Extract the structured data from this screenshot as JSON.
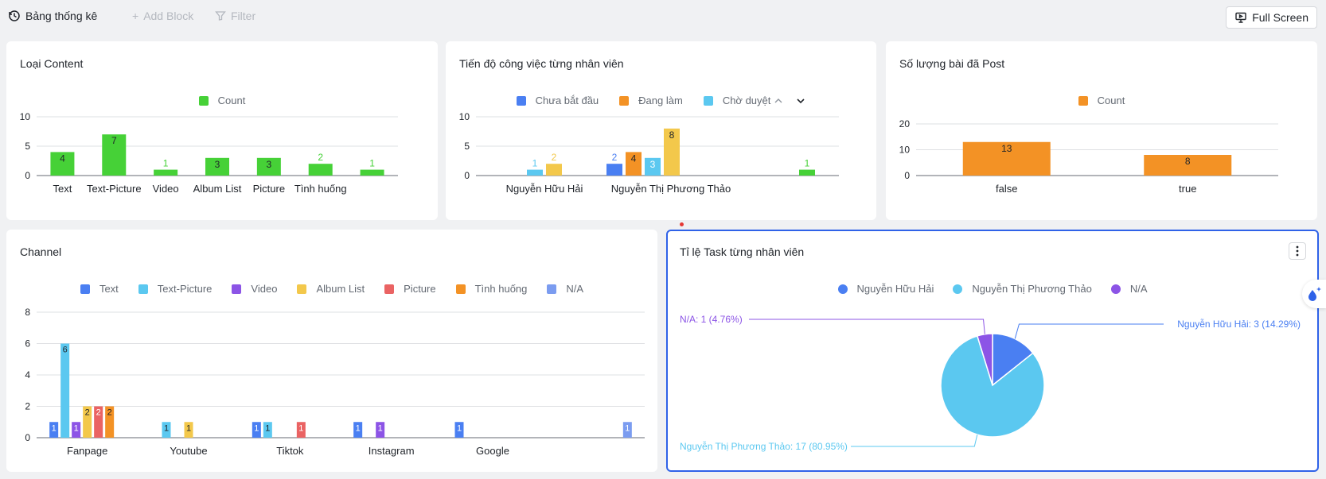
{
  "topbar": {
    "title": "Bảng thống kê",
    "add_block": "Add Block",
    "filter": "Filter",
    "full_screen": "Full Screen"
  },
  "colors": {
    "green": "#46d137",
    "orange": "#f39225",
    "blue": "#4a7ff2",
    "cyan": "#5bc8f0",
    "purple": "#8c54e6",
    "yellow": "#f3c84b",
    "red": "#ea6363",
    "selected_border": "#2f62e8"
  },
  "cards": {
    "loai_content": {
      "title": "Loại Content",
      "legend": [
        "Count"
      ]
    },
    "tien_do": {
      "title": "Tiến độ công việc từng nhân viên",
      "legend": [
        "Chưa bắt đầu",
        "Đang làm",
        "Chờ duyệt"
      ]
    },
    "so_luong": {
      "title": "Số lượng bài đã Post",
      "legend": [
        "Count"
      ]
    },
    "channel": {
      "title": "Channel",
      "legend": [
        "Text",
        "Text-Picture",
        "Video",
        "Album List",
        "Picture",
        "Tình huống",
        "N/A"
      ]
    },
    "ti_le": {
      "title": "Tỉ lệ Task từng nhân viên",
      "legend": [
        "Nguyễn Hữu Hải",
        "Nguyễn Thị Phương Thảo",
        "N/A"
      ]
    }
  },
  "chart_data": [
    {
      "id": "loai_content",
      "type": "bar",
      "title": "Loại Content",
      "categories": [
        "Text",
        "Text-Picture",
        "Video",
        "Album List",
        "Picture",
        "Tình huống",
        ""
      ],
      "series": [
        {
          "name": "Count",
          "values": [
            4,
            7,
            1,
            3,
            3,
            2,
            1
          ]
        }
      ],
      "yticks": [
        0,
        5,
        10
      ],
      "ylim": [
        0,
        10
      ],
      "grid": true,
      "legend": "top-center"
    },
    {
      "id": "tien_do",
      "type": "bar",
      "title": "Tiến độ công việc từng nhân viên",
      "categories": [
        "Nguyễn Hữu Hải",
        "Nguyễn Thị Phương Thảo",
        ""
      ],
      "series": [
        {
          "name": "Chưa bắt đầu",
          "values": [
            0,
            2,
            0
          ]
        },
        {
          "name": "Đang làm",
          "values": [
            0,
            4,
            0
          ]
        },
        {
          "name": "Chờ duyệt",
          "values": [
            1,
            3,
            0
          ]
        },
        {
          "values": [
            2,
            8,
            0
          ]
        },
        {
          "values": [
            0,
            0,
            1
          ]
        }
      ],
      "yticks": [
        0,
        5,
        10
      ],
      "ylim": [
        0,
        10
      ],
      "grid": true,
      "legend": "top-center"
    },
    {
      "id": "so_luong",
      "type": "bar",
      "title": "Số lượng bài đã Post",
      "categories": [
        "false",
        "true"
      ],
      "series": [
        {
          "name": "Count",
          "values": [
            13,
            8
          ]
        }
      ],
      "yticks": [
        0,
        10,
        20
      ],
      "ylim": [
        0,
        20
      ],
      "grid": true,
      "legend": "top-center"
    },
    {
      "id": "channel",
      "type": "bar",
      "title": "Channel",
      "categories": [
        "Fanpage",
        "Youtube",
        "Tiktok",
        "Instagram",
        "Google",
        ""
      ],
      "series": [
        {
          "name": "Text",
          "values": [
            1,
            0,
            1,
            1,
            1,
            0
          ]
        },
        {
          "name": "Text-Picture",
          "values": [
            6,
            1,
            1,
            0,
            0,
            0
          ]
        },
        {
          "name": "Video",
          "values": [
            1,
            0,
            0,
            1,
            0,
            0
          ]
        },
        {
          "name": "Album List",
          "values": [
            2,
            1,
            0,
            0,
            0,
            0
          ]
        },
        {
          "name": "Picture",
          "values": [
            2,
            0,
            1,
            0,
            0,
            0
          ]
        },
        {
          "name": "Tình huống",
          "values": [
            2,
            0,
            0,
            0,
            0,
            0
          ]
        },
        {
          "name": "N/A",
          "values": [
            0,
            0,
            0,
            0,
            0,
            1
          ]
        }
      ],
      "yticks": [
        0,
        2,
        4,
        6,
        8
      ],
      "ylim": [
        0,
        8
      ],
      "grid": true,
      "legend": "top-center"
    },
    {
      "id": "ti_le",
      "type": "pie",
      "title": "Tỉ lệ Task từng nhân viên",
      "slices": [
        {
          "name": "Nguyễn Hữu Hải",
          "value": 3,
          "percent": 14.29,
          "label": "Nguyễn Hữu Hải: 3 (14.29%)"
        },
        {
          "name": "Nguyễn Thị Phương Thảo",
          "value": 17,
          "percent": 80.95,
          "label": "Nguyễn Thị Phương Thảo: 17 (80.95%)"
        },
        {
          "name": "N/A",
          "value": 1,
          "percent": 4.76,
          "label": "N/A: 1 (4.76%)"
        }
      ],
      "legend": "top-center"
    }
  ]
}
